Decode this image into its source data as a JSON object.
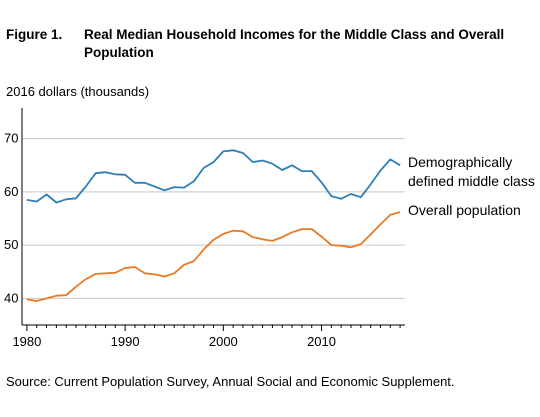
{
  "figure": {
    "number": "Figure 1.",
    "title": "Real Median Household Incomes for the Middle Class and Overall Population",
    "unit_label": "2016 dollars (thousands)",
    "source": "Source: Current Population Survey, Annual Social and Economic Supplement."
  },
  "colors": {
    "middle_class": "#2e7fb8",
    "overall": "#ea7a24",
    "grid": "#c8c8c8",
    "axis": "#000000"
  },
  "chart_data": {
    "type": "line",
    "title": "Real Median Household Incomes for the Middle Class and Overall Population",
    "xlabel": "",
    "ylabel": "2016 dollars (thousands)",
    "xlim": [
      1979.5,
      2018.5
    ],
    "ylim": [
      35,
      75
    ],
    "xticks": [
      1980,
      1990,
      2000,
      2010
    ],
    "yticks": [
      40,
      50,
      60,
      70
    ],
    "grid": "horizontal",
    "legend": "inline labels at right end of lines",
    "x": [
      1980,
      1981,
      1982,
      1983,
      1984,
      1985,
      1986,
      1987,
      1988,
      1989,
      1990,
      1991,
      1992,
      1993,
      1994,
      1995,
      1996,
      1997,
      1998,
      1999,
      2000,
      2001,
      2002,
      2003,
      2004,
      2005,
      2006,
      2007,
      2008,
      2009,
      2010,
      2011,
      2012,
      2013,
      2014,
      2015,
      2016,
      2017,
      2018
    ],
    "series": [
      {
        "name": "Demographically defined middle class",
        "label_lines": [
          "Demographically",
          "defined middle class"
        ],
        "values": [
          58.5,
          58.2,
          59.5,
          58.0,
          58.6,
          58.8,
          61.0,
          63.5,
          63.7,
          63.3,
          63.2,
          61.7,
          61.7,
          61.0,
          60.3,
          60.9,
          60.8,
          62.0,
          64.5,
          65.6,
          67.6,
          67.8,
          67.3,
          65.6,
          65.9,
          65.3,
          64.1,
          65.0,
          63.9,
          63.9,
          61.8,
          59.2,
          58.7,
          59.6,
          59.0,
          61.4,
          64.0,
          66.1,
          65.0
        ]
      },
      {
        "name": "Overall population",
        "label_lines": [
          "Overall population"
        ],
        "values": [
          39.8,
          39.5,
          40.0,
          40.5,
          40.6,
          42.2,
          43.6,
          44.6,
          44.7,
          44.8,
          45.7,
          45.9,
          44.7,
          44.5,
          44.1,
          44.7,
          46.3,
          47.0,
          49.2,
          51.0,
          52.1,
          52.7,
          52.6,
          51.5,
          51.1,
          50.8,
          51.5,
          52.4,
          53.0,
          53.0,
          51.6,
          50.0,
          49.9,
          49.6,
          50.2,
          52.0,
          53.9,
          55.7,
          56.2
        ]
      }
    ]
  }
}
